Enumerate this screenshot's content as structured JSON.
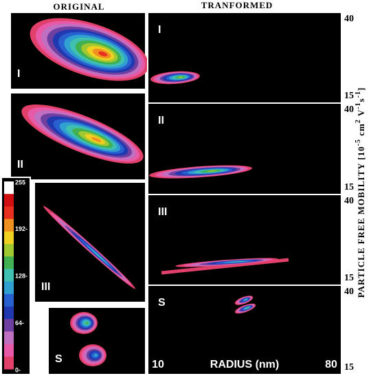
{
  "header": {
    "left": "ORIGINAL",
    "right": "TRANFORMED"
  },
  "original_panels": [
    {
      "label": "I"
    },
    {
      "label": "II"
    },
    {
      "label": "III"
    },
    {
      "label": "S"
    }
  ],
  "transformed_panels": [
    {
      "label": "I",
      "ylim": [
        15,
        40
      ],
      "yticks": [
        40,
        15
      ]
    },
    {
      "label": "II",
      "ylim": [
        15,
        40
      ],
      "yticks": [
        40,
        15
      ]
    },
    {
      "label": "III",
      "ylim": [
        15,
        40
      ],
      "yticks": [
        40,
        15
      ]
    },
    {
      "label": "S",
      "ylim": [
        15,
        40
      ],
      "yticks": [
        40,
        15
      ],
      "xlim": [
        10,
        80
      ],
      "xticks": [
        10,
        80
      ],
      "xlabel": "RADIUS (nm)"
    }
  ],
  "colorbar": {
    "range": [
      0,
      255
    ],
    "ticks": [
      {
        "value": 255,
        "label": "255"
      },
      {
        "value": 192,
        "label": "192-"
      },
      {
        "value": 128,
        "label": "128-"
      },
      {
        "value": 64,
        "label": "64-"
      },
      {
        "value": 0,
        "label": "0-"
      }
    ]
  },
  "y_axis_title": [
    "PARTICLE  FREE  MOBILITY  [10",
    "-5",
    " cm",
    "2",
    " V",
    "-1",
    "s",
    "-1",
    "]"
  ]
}
